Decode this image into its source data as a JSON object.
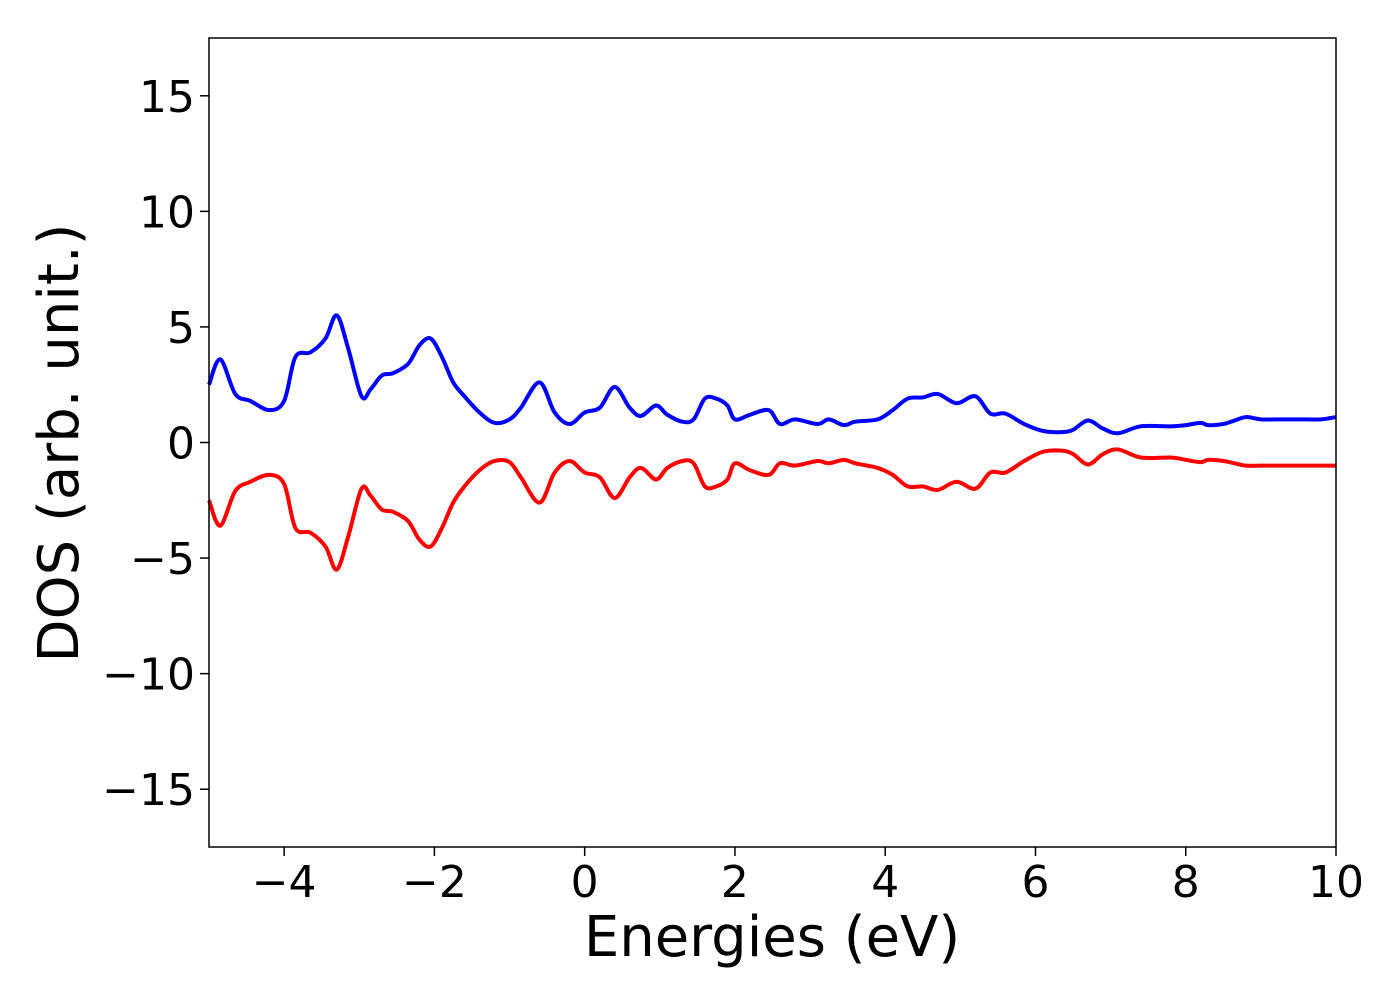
{
  "chart_data": {
    "type": "line",
    "xlabel": "Energies (eV)",
    "ylabel": "DOS (arb. unit.)",
    "xlim": [
      -5,
      10
    ],
    "ylim": [
      -17.5,
      17.5
    ],
    "xticks": [
      -4,
      -2,
      0,
      2,
      4,
      6,
      8,
      10
    ],
    "xtick_labels": [
      "−4",
      "−2",
      "0",
      "2",
      "4",
      "6",
      "8",
      "10"
    ],
    "yticks": [
      15,
      10,
      5,
      0,
      -5,
      -10,
      -15
    ],
    "ytick_labels": [
      "15",
      "10",
      "5",
      "0",
      "−5",
      "−10",
      "−15"
    ],
    "grid": false,
    "series": [
      {
        "color": "#0000ff",
        "x": [
          -5.0,
          -4.85,
          -4.65,
          -4.45,
          -4.2,
          -4.0,
          -3.85,
          -3.65,
          -3.45,
          -3.3,
          -3.15,
          -2.97,
          -2.85,
          -2.7,
          -2.55,
          -2.35,
          -2.2,
          -2.05,
          -1.9,
          -1.75,
          -1.6,
          -1.4,
          -1.2,
          -1.0,
          -0.85,
          -0.6,
          -0.4,
          -0.2,
          0.0,
          0.2,
          0.4,
          0.6,
          0.75,
          0.95,
          1.1,
          1.3,
          1.45,
          1.6,
          1.75,
          1.9,
          2.0,
          2.2,
          2.45,
          2.6,
          2.8,
          3.1,
          3.25,
          3.45,
          3.6,
          3.9,
          4.1,
          4.3,
          4.5,
          4.7,
          4.95,
          5.2,
          5.4,
          5.6,
          5.85,
          6.1,
          6.35,
          6.5,
          6.7,
          6.9,
          7.1,
          7.4,
          7.8,
          8.0,
          8.2,
          8.3,
          8.5,
          8.65,
          8.8,
          9.0,
          9.2,
          9.4,
          9.6,
          9.8,
          10.0
        ],
        "y": [
          2.5,
          3.6,
          2.1,
          1.8,
          1.4,
          1.8,
          3.7,
          3.9,
          4.5,
          5.5,
          4.1,
          2.0,
          2.3,
          2.9,
          3.0,
          3.4,
          4.2,
          4.5,
          3.7,
          2.6,
          2.0,
          1.3,
          0.85,
          1.0,
          1.5,
          2.6,
          1.3,
          0.8,
          1.3,
          1.5,
          2.4,
          1.5,
          1.15,
          1.6,
          1.2,
          0.9,
          1.0,
          1.9,
          1.9,
          1.6,
          1.0,
          1.2,
          1.4,
          0.8,
          1.0,
          0.8,
          1.0,
          0.75,
          0.9,
          1.0,
          1.4,
          1.9,
          1.95,
          2.1,
          1.7,
          2.0,
          1.25,
          1.25,
          0.8,
          0.5,
          0.45,
          0.55,
          0.95,
          0.6,
          0.4,
          0.7,
          0.7,
          0.75,
          0.85,
          0.75,
          0.8,
          0.95,
          1.1,
          1.0,
          1.0,
          1.0,
          1.0,
          1.0,
          1.1
        ]
      },
      {
        "color": "#ff0000",
        "x": [
          -5.0,
          -4.85,
          -4.65,
          -4.45,
          -4.2,
          -4.0,
          -3.85,
          -3.65,
          -3.45,
          -3.3,
          -3.15,
          -2.97,
          -2.85,
          -2.7,
          -2.55,
          -2.35,
          -2.2,
          -2.05,
          -1.9,
          -1.75,
          -1.6,
          -1.4,
          -1.2,
          -1.0,
          -0.85,
          -0.6,
          -0.4,
          -0.2,
          0.0,
          0.2,
          0.4,
          0.6,
          0.75,
          0.95,
          1.1,
          1.3,
          1.45,
          1.6,
          1.75,
          1.9,
          2.0,
          2.2,
          2.45,
          2.6,
          2.8,
          3.1,
          3.25,
          3.45,
          3.6,
          3.9,
          4.1,
          4.3,
          4.5,
          4.7,
          4.95,
          5.2,
          5.4,
          5.6,
          5.85,
          6.1,
          6.35,
          6.5,
          6.7,
          6.9,
          7.1,
          7.4,
          7.8,
          8.0,
          8.2,
          8.3,
          8.5,
          8.65,
          8.8,
          9.0,
          9.2,
          9.4,
          9.6,
          9.8,
          10.0
        ],
        "y": [
          -2.5,
          -3.6,
          -2.1,
          -1.7,
          -1.4,
          -1.8,
          -3.7,
          -3.9,
          -4.5,
          -5.5,
          -4.1,
          -2.0,
          -2.3,
          -2.9,
          -3.0,
          -3.4,
          -4.2,
          -4.5,
          -3.7,
          -2.6,
          -1.9,
          -1.2,
          -0.8,
          -0.85,
          -1.5,
          -2.6,
          -1.3,
          -0.8,
          -1.3,
          -1.5,
          -2.4,
          -1.5,
          -1.1,
          -1.6,
          -1.1,
          -0.8,
          -0.9,
          -1.9,
          -1.9,
          -1.6,
          -0.9,
          -1.2,
          -1.4,
          -0.9,
          -1.0,
          -0.8,
          -0.9,
          -0.75,
          -0.9,
          -1.1,
          -1.4,
          -1.9,
          -1.9,
          -2.05,
          -1.7,
          -2.0,
          -1.3,
          -1.3,
          -0.8,
          -0.4,
          -0.35,
          -0.5,
          -0.95,
          -0.5,
          -0.3,
          -0.65,
          -0.65,
          -0.75,
          -0.85,
          -0.75,
          -0.8,
          -0.9,
          -1.0,
          -1.0,
          -1.0,
          -1.0,
          -1.0,
          -1.0,
          -1.0
        ]
      }
    ]
  }
}
